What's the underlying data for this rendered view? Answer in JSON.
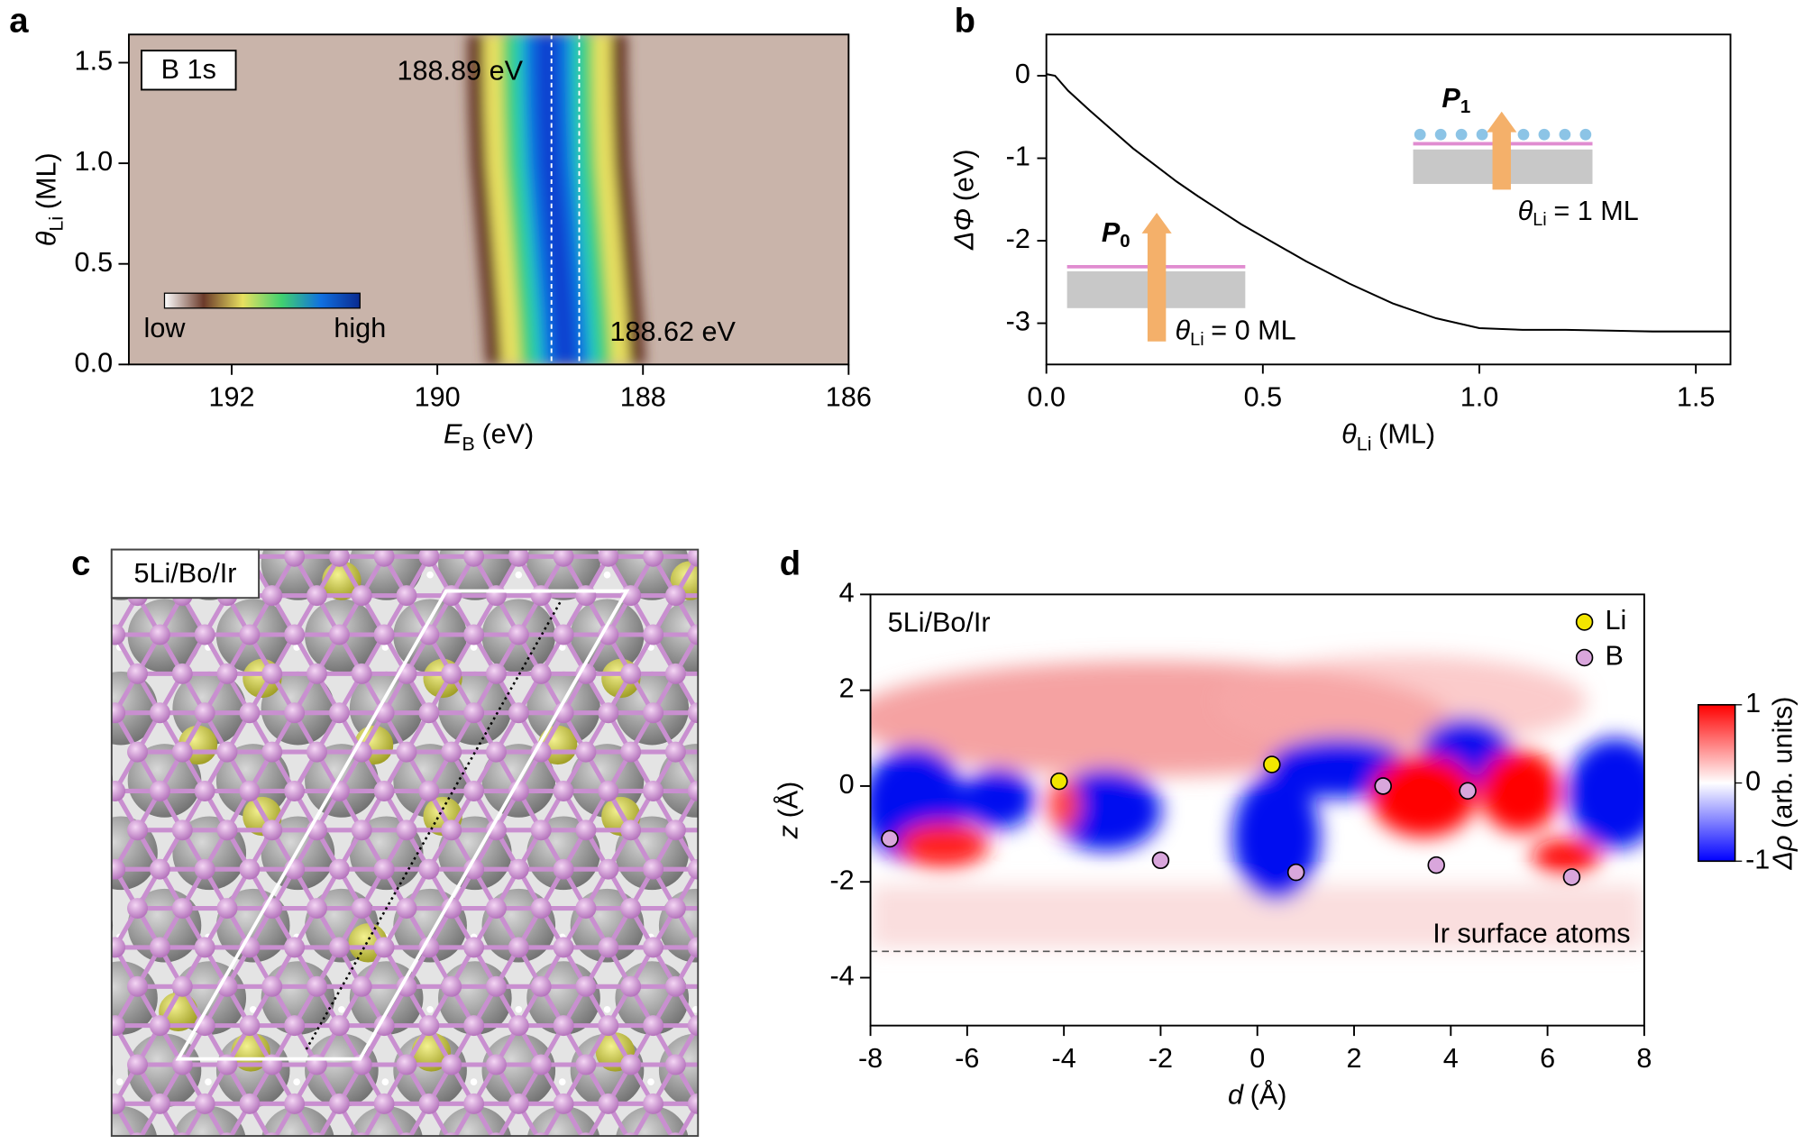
{
  "chart_data": [
    {
      "type": "heatmap",
      "panel_label": "a",
      "label": "B 1s",
      "xlabel": {
        "symbol": "E",
        "sub": "B",
        "unit": "(eV)"
      },
      "ylabel": {
        "symbol": "θ",
        "sub": "Li",
        "unit": "(ML)"
      },
      "xlim": [
        193,
        186
      ],
      "ylim": [
        0,
        1.64
      ],
      "xticks": [
        192,
        190,
        188,
        186
      ],
      "yticks": [
        {
          "value": 0,
          "label": "0.0"
        },
        0.5,
        {
          "value": 1,
          "label": "1.0"
        },
        1.5
      ],
      "colorbar": {
        "low": "low",
        "high": "high",
        "colors": [
          "#ffffff",
          "#6b3a2a",
          "#e8e060",
          "#40d070",
          "#1070e0",
          "#0a2a90"
        ]
      },
      "annotations": [
        {
          "value": 188.89,
          "label": "188.89 eV"
        },
        {
          "value": 188.62,
          "label": "188.62 eV"
        }
      ],
      "peak": {
        "theta": [
          0,
          0.25,
          0.5,
          0.75,
          1.0,
          1.25,
          1.5,
          1.64
        ],
        "energy": [
          188.75,
          188.78,
          188.82,
          188.86,
          188.9,
          188.92,
          188.93,
          188.93
        ]
      }
    },
    {
      "type": "line",
      "panel_label": "b",
      "color": "#000000",
      "xlabel": {
        "symbol": "θ",
        "sub": "Li",
        "unit": "(ML)"
      },
      "ylabel": {
        "symbol": "ΔΦ",
        "unit": "(eV)"
      },
      "xlim": [
        0,
        1.58
      ],
      "ylim": [
        -3.5,
        0.5
      ],
      "xticks": [
        {
          "value": 0,
          "label": "0.0"
        },
        0.5,
        {
          "value": 1,
          "label": "1.0"
        },
        1.5
      ],
      "yticks": [
        0,
        -1,
        -2,
        -3
      ],
      "x": [
        0,
        0.02,
        0.05,
        0.1,
        0.15,
        0.2,
        0.25,
        0.3,
        0.35,
        0.4,
        0.45,
        0.5,
        0.6,
        0.7,
        0.8,
        0.9,
        1.0,
        1.1,
        1.2,
        1.3,
        1.4,
        1.5,
        1.58
      ],
      "values": [
        0.02,
        0,
        -0.18,
        -0.42,
        -0.65,
        -0.88,
        -1.08,
        -1.28,
        -1.46,
        -1.63,
        -1.8,
        -1.95,
        -2.25,
        -2.52,
        -2.76,
        -2.94,
        -3.06,
        -3.08,
        -3.08,
        -3.09,
        -3.1,
        -3.1,
        -3.1
      ],
      "insets": [
        {
          "symbol": "P",
          "sub": "0",
          "label": {
            "symbol": "θ",
            "sub": "Li",
            "rest": "= 0 ML"
          }
        },
        {
          "symbol": "P",
          "sub": "1",
          "label": {
            "symbol": "θ",
            "sub": "Li",
            "rest": "= 1 ML"
          }
        }
      ]
    },
    {
      "type": "heatmap",
      "panel_label": "d",
      "label": "5Li/Bo/Ir",
      "xlabel": {
        "symbol": "d",
        "unit": "(Å)"
      },
      "ylabel": {
        "symbol": "z",
        "unit": "(Å)"
      },
      "xlim": [
        -8,
        8
      ],
      "ylim": [
        -5,
        4
      ],
      "xticks": [
        -8,
        -6,
        -4,
        -2,
        0,
        2,
        4,
        6,
        8
      ],
      "yticks": [
        4,
        2,
        0,
        -2,
        -4
      ],
      "series": [
        {
          "name": "Li",
          "color": "#f2e600",
          "x": [
            -4.1,
            0.3
          ],
          "values": [
            0.1,
            0.45
          ]
        },
        {
          "name": "B",
          "color": "#d9a6dc",
          "x": [
            -7.6,
            -2.0,
            0.8,
            2.6,
            3.7,
            4.35,
            6.5
          ],
          "values": [
            -1.1,
            -1.55,
            -1.8,
            0,
            -1.65,
            -0.1,
            -1.9
          ]
        }
      ],
      "surface": {
        "value": -3.45,
        "label": "Ir surface atoms"
      },
      "colorbar": {
        "lim": [
          -1,
          1
        ],
        "ticks": [
          1,
          0,
          -1
        ],
        "label": {
          "symbol": "Δρ",
          "unit": "(arb. units)"
        },
        "colors": [
          "#0000ff",
          "#ffffff",
          "#ff0000"
        ]
      }
    }
  ],
  "structure": {
    "panel_label": "c",
    "label": "5Li/Bo/Ir"
  }
}
